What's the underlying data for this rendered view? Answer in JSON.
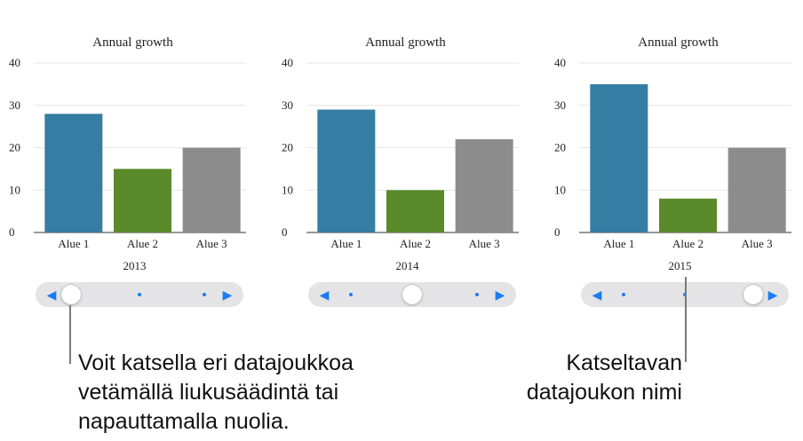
{
  "chart_data": [
    {
      "type": "bar",
      "title": "Annual growth",
      "dataset": "2013",
      "categories": [
        "Alue 1",
        "Alue 2",
        "Alue 3"
      ],
      "values": [
        28,
        15,
        20
      ],
      "colors": [
        "#357da2",
        "#5a8a2a",
        "#8c8c8c"
      ],
      "ylim": [
        0,
        40
      ],
      "yticks": [
        "0",
        "10",
        "20",
        "30",
        "40"
      ],
      "grid": true,
      "slider_position": 0
    },
    {
      "type": "bar",
      "title": "Annual growth",
      "dataset": "2014",
      "categories": [
        "Alue 1",
        "Alue 2",
        "Alue 3"
      ],
      "values": [
        29,
        10,
        22
      ],
      "colors": [
        "#357da2",
        "#5a8a2a",
        "#8c8c8c"
      ],
      "ylim": [
        0,
        40
      ],
      "yticks": [
        "0",
        "10",
        "20",
        "30",
        "40"
      ],
      "grid": true,
      "slider_position": 0.5
    },
    {
      "type": "bar",
      "title": "Annual growth",
      "dataset": "2015",
      "categories": [
        "Alue 1",
        "Alue 2",
        "Alue 3"
      ],
      "values": [
        35,
        8,
        20
      ],
      "colors": [
        "#357da2",
        "#5a8a2a",
        "#8c8c8c"
      ],
      "ylim": [
        0,
        40
      ],
      "yticks": [
        "0",
        "10",
        "20",
        "30",
        "40"
      ],
      "grid": true,
      "slider_position": 1
    }
  ],
  "slider": {
    "left_arrow_icon": "triangle-left-icon",
    "right_arrow_icon": "triangle-right-icon",
    "accent_color": "#1a7cf4"
  },
  "callouts": {
    "left": [
      "Voit katsella eri datajoukkoa",
      "vetämällä liukusäädintä tai",
      "napauttamalla nuolia."
    ],
    "right": [
      "Katseltavan",
      "datajoukon nimi"
    ]
  }
}
